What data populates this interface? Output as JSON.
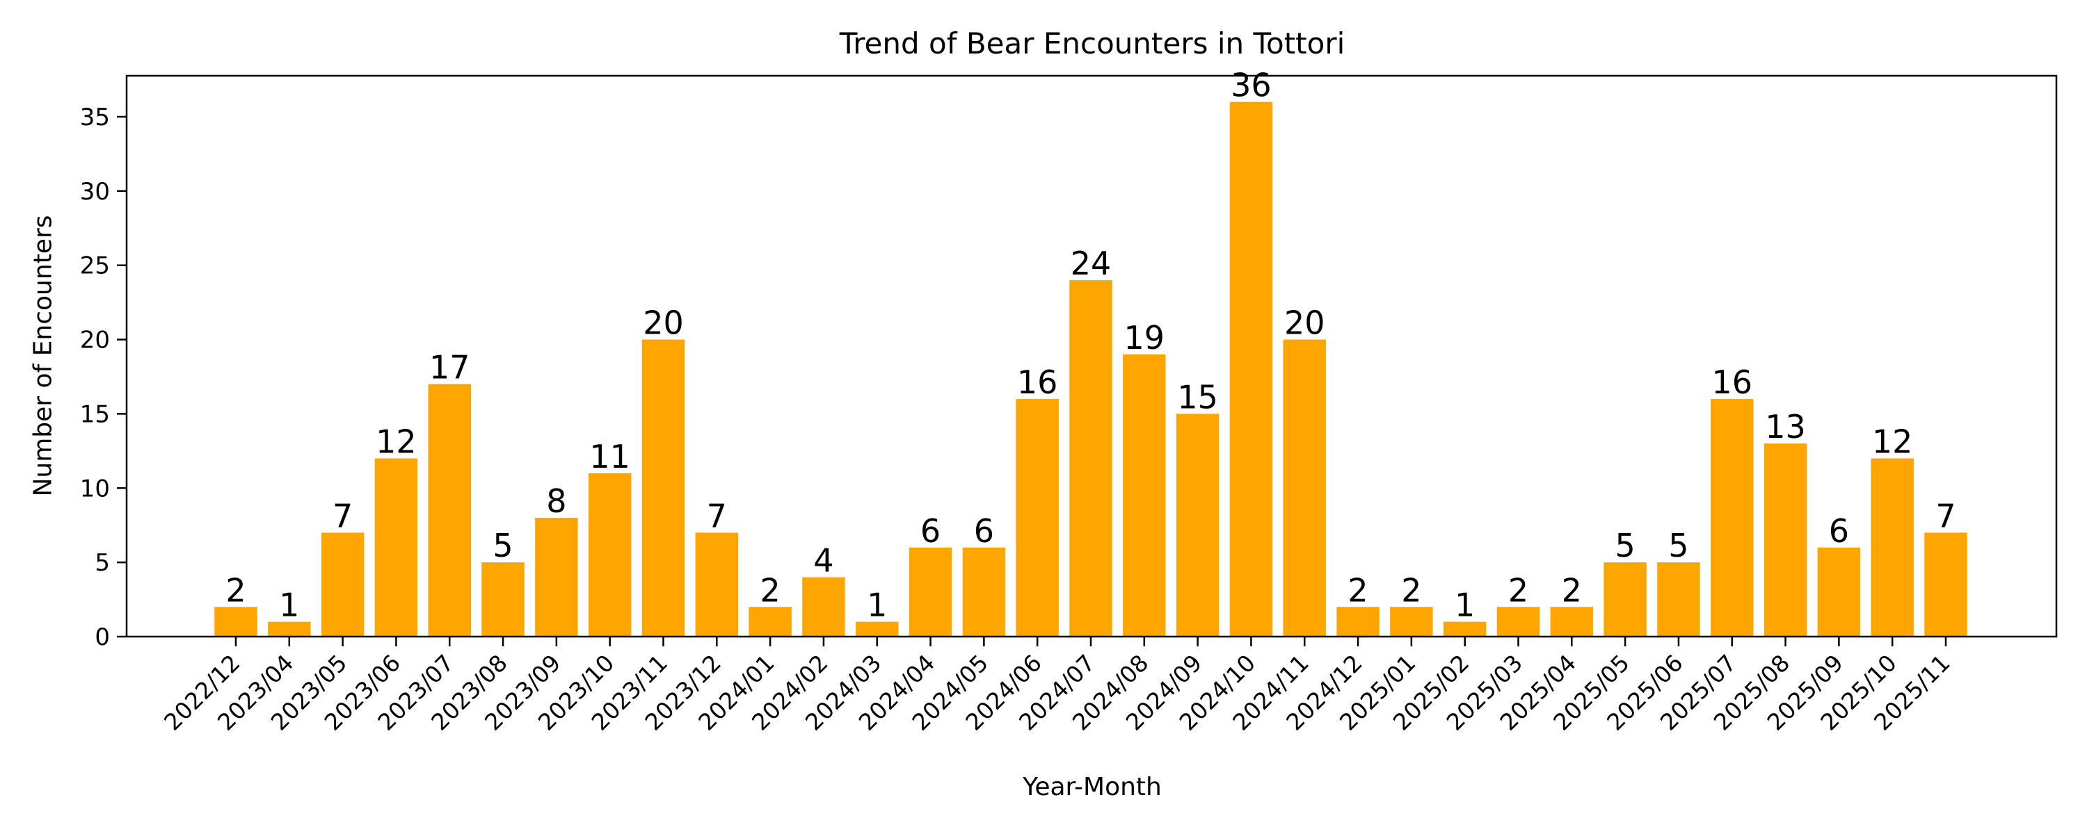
{
  "chart_data": {
    "type": "bar",
    "title": "Trend of Bear Encounters in Tottori",
    "xlabel": "Year-Month",
    "ylabel": "Number of Encounters",
    "categories": [
      "2022/12",
      "2023/04",
      "2023/05",
      "2023/06",
      "2023/07",
      "2023/08",
      "2023/09",
      "2023/10",
      "2023/11",
      "2023/12",
      "2024/01",
      "2024/02",
      "2024/03",
      "2024/04",
      "2024/05",
      "2024/06",
      "2024/07",
      "2024/08",
      "2024/09",
      "2024/10",
      "2024/11",
      "2024/12",
      "2025/01",
      "2025/02",
      "2025/03",
      "2025/04",
      "2025/05",
      "2025/06",
      "2025/07",
      "2025/08",
      "2025/09",
      "2025/10",
      "2025/11"
    ],
    "values": [
      2,
      1,
      7,
      12,
      17,
      5,
      8,
      11,
      20,
      7,
      2,
      4,
      1,
      6,
      6,
      16,
      24,
      19,
      15,
      36,
      20,
      2,
      2,
      1,
      2,
      2,
      5,
      5,
      16,
      13,
      6,
      12,
      7
    ],
    "ylim": [
      0,
      37.8
    ],
    "yticks": [
      0,
      5,
      10,
      15,
      20,
      25,
      30,
      35
    ],
    "grid": false,
    "legend": null,
    "data_labels": true,
    "bar_color": "#FFA500",
    "xtick_rotation": 45
  }
}
